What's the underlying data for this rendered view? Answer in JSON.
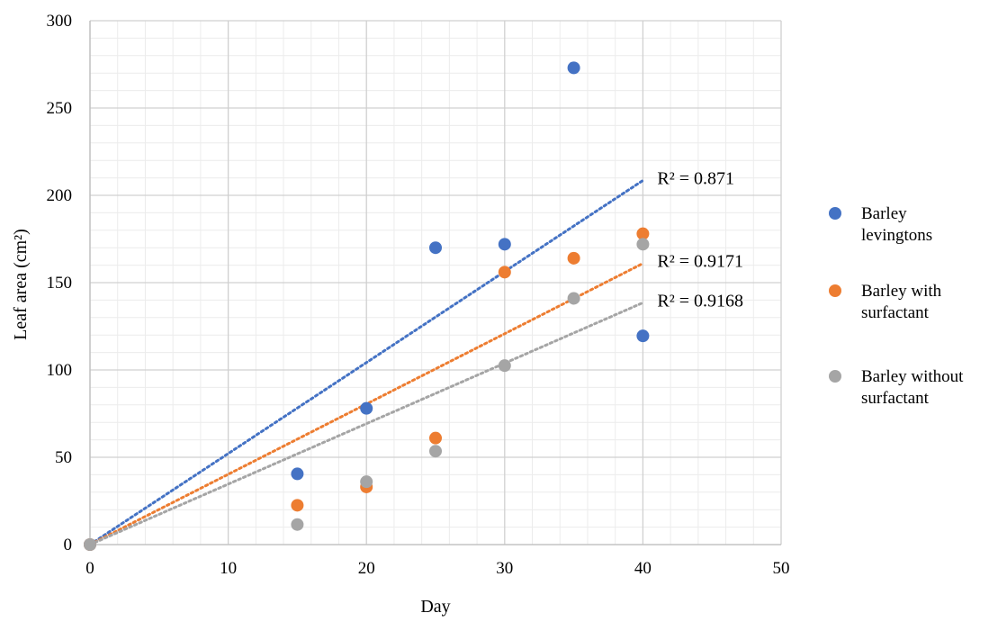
{
  "chart_data": {
    "type": "scatter",
    "xlabel": "Day",
    "ylabel": "Leaf area (cm²)",
    "xlim": [
      0,
      50
    ],
    "ylim": [
      0,
      300
    ],
    "x_ticks": [
      0,
      10,
      20,
      30,
      40,
      50
    ],
    "y_ticks": [
      0,
      50,
      100,
      150,
      200,
      250,
      300
    ],
    "x_minor_step": 2,
    "y_minor_step": 10,
    "grid": true,
    "legend_position": "right",
    "series": [
      {
        "name": "Barley levingtons",
        "legend_lines": [
          "Barley",
          "levingtons"
        ],
        "color": "#4472C4",
        "x": [
          0,
          15,
          20,
          25,
          30,
          35,
          40
        ],
        "y": [
          0,
          40.5,
          78,
          170,
          172,
          273,
          119.5
        ],
        "trendline": {
          "type": "linear-through-origin",
          "x_end": 40,
          "y_end": 208.5,
          "r2_label": "R² = 0.871"
        }
      },
      {
        "name": "Barley with surfactant",
        "legend_lines": [
          "Barley with",
          "surfactant"
        ],
        "color": "#ED7D31",
        "x": [
          0,
          15,
          20,
          25,
          30,
          35,
          40
        ],
        "y": [
          0,
          22.5,
          33,
          61,
          156,
          164,
          178
        ],
        "trendline": {
          "type": "linear-through-origin",
          "x_end": 40,
          "y_end": 161,
          "r2_label": "R² = 0.9171"
        }
      },
      {
        "name": "Barley without surfactant",
        "legend_lines": [
          "Barley without",
          "surfactant"
        ],
        "color": "#A5A5A5",
        "x": [
          0,
          15,
          20,
          25,
          30,
          35,
          40
        ],
        "y": [
          0,
          11.5,
          36,
          53.5,
          102.5,
          141,
          172
        ],
        "trendline": {
          "type": "linear-through-origin",
          "x_end": 40,
          "y_end": 138.5,
          "r2_label": "R² = 0.9168"
        }
      }
    ]
  }
}
